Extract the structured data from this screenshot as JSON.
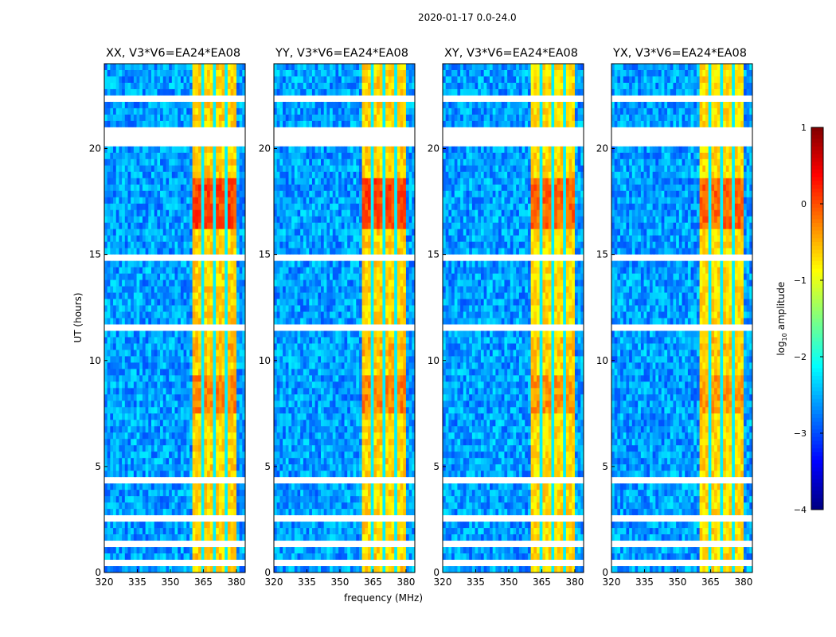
{
  "chart_data": {
    "type": "heatmap",
    "suptitle": "2020-01-17 0.0-24.0",
    "xlabel": "frequency (MHz)",
    "ylabel": "UT (hours)",
    "xlim": [
      320,
      384
    ],
    "ylim": [
      0,
      24
    ],
    "xticks": [
      "320",
      "335",
      "350",
      "365",
      "380"
    ],
    "yticks": [
      "0",
      "5",
      "10",
      "15",
      "20"
    ],
    "colorbar": {
      "label_prefix": "log",
      "label_sub": "10",
      "label_suffix": " amplitude",
      "range": [
        -4,
        1
      ],
      "ticks": [
        "1",
        "0",
        "−1",
        "−2",
        "−3",
        "−4"
      ],
      "colormap": "jet"
    },
    "panels": [
      {
        "title": "XX, V3*V6=EA24*EA08",
        "strength": 1.0
      },
      {
        "title": "YY, V3*V6=EA24*EA08",
        "strength": 1.0
      },
      {
        "title": "XY, V3*V6=EA24*EA08",
        "strength": 0.8
      },
      {
        "title": "YX, V3*V6=EA24*EA08",
        "strength": 0.8
      }
    ],
    "model": {
      "background_log_amp": -2.6,
      "rfi_band_mhz": [
        360.5,
        380
      ],
      "rfi_band_log_amp": -0.9,
      "band_dark_channels_mhz": [
        365.2,
        370.2,
        375
      ],
      "strong_periods_hours": [
        [
          16.3,
          18.7,
          0.3
        ],
        [
          7.5,
          9.2,
          -0.1
        ],
        [
          10.2,
          11.2,
          -0.4
        ]
      ],
      "flagged_hours": [
        [
          20.2,
          21.1
        ],
        [
          22.3,
          22.45
        ],
        [
          4.3,
          4.5
        ],
        [
          2.55,
          2.65
        ],
        [
          1.35,
          1.45
        ],
        [
          11.45,
          11.6
        ],
        [
          14.8,
          14.9
        ],
        [
          6.3,
          6.4
        ],
        [
          0.4,
          0.5
        ]
      ]
    }
  }
}
